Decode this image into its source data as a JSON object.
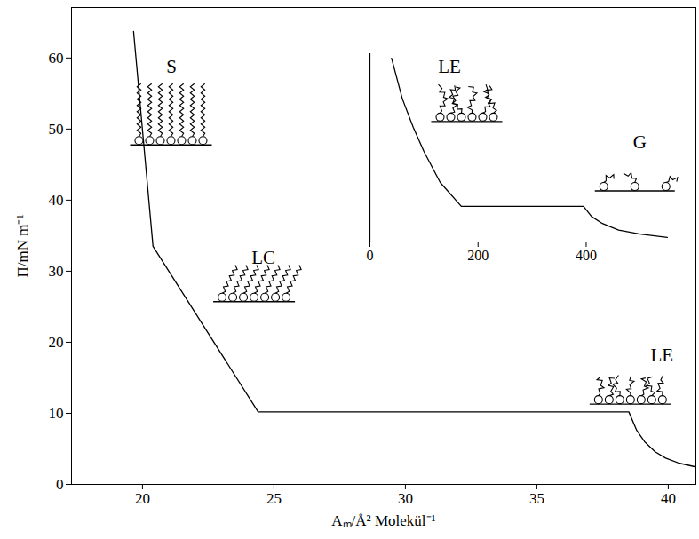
{
  "chart_data": [
    {
      "type": "line",
      "x_label": "Aₘ/Å² Molekül⁻¹",
      "y_label": "Π/mN m⁻¹",
      "x": [
        19.66,
        20.4,
        24.4,
        38.5,
        38.8,
        39.1,
        39.5,
        39.9,
        40.4,
        41.0
      ],
      "values": [
        63.75,
        33.5,
        10.2,
        10.2,
        7.6,
        6.0,
        4.6,
        3.7,
        3.0,
        2.5
      ],
      "color": "#000000",
      "xlim": [
        17.3,
        41.05
      ],
      "ylim": [
        0,
        67.1
      ],
      "xticks": [
        20,
        25,
        30,
        35,
        40
      ],
      "yticks": [
        0,
        10,
        20,
        30,
        40,
        50,
        60
      ],
      "annotations": [
        {
          "text": "S",
          "x": 21.1,
          "y": 58.7
        },
        {
          "text": "LC",
          "x": 24.6,
          "y": 31.9
        },
        {
          "text": "LE",
          "x": 39.76,
          "y": 18.1
        }
      ]
    },
    {
      "type": "line",
      "x": [
        40,
        60,
        80,
        100,
        130,
        169,
        395,
        410,
        430,
        460,
        500,
        550
      ],
      "values": [
        97.6,
        76,
        61,
        48,
        31.6,
        18.9,
        18.9,
        13.5,
        9.8,
        6.3,
        4.2,
        2.4
      ],
      "color": "#000000",
      "xlim": [
        0,
        552
      ],
      "ylim": [
        0,
        100
      ],
      "xticks": [
        0,
        200,
        400
      ],
      "tick_labels": "x",
      "annotations": [
        {
          "text": "LE",
          "x": 147,
          "y": 93
        },
        {
          "text": "G",
          "x": 499,
          "y": 52.8
        }
      ]
    }
  ]
}
